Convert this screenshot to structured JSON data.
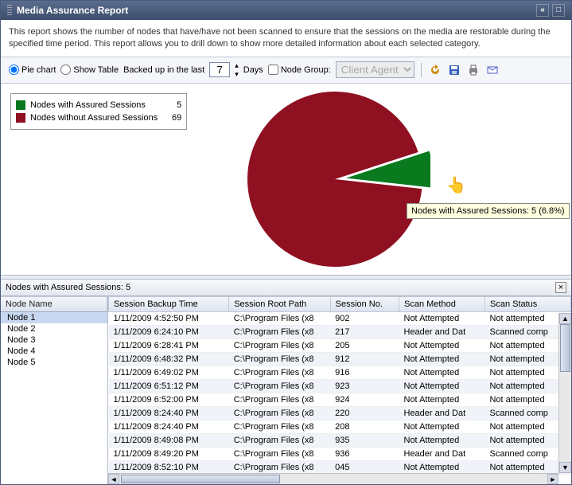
{
  "window": {
    "title": "Media Assurance Report"
  },
  "description": "This report shows the number of nodes that have/have not been scanned to ensure that the sessions on the media are restorable during the specified time period. This report allows you to drill down to show more detailed information about each selected category.",
  "toolbar": {
    "pie_chart_label": "Pie chart",
    "show_table_label": "Show Table",
    "backed_up_label": "Backed up in the last",
    "days_value": "7",
    "days_label": "Days",
    "node_group_label": "Node Group:",
    "node_group_value": "Client Agent"
  },
  "chart": {
    "type": "pie",
    "radius": 110,
    "series": [
      {
        "label": "Nodes with Assured Sessions",
        "value": 5,
        "color": "#0a7a1f"
      },
      {
        "label": "Nodes without Assured Sessions",
        "value": 69,
        "color": "#8f1020"
      }
    ],
    "tooltip": "Nodes with Assured Sessions: 5 (6.8%)",
    "background": "#ffffff",
    "explode_index": 0,
    "explode_offset": 14
  },
  "panel": {
    "title": "Nodes with Assured Sessions: 5"
  },
  "left": {
    "header": "Node Name",
    "items": [
      "Node 1",
      "Node 2",
      "Node 3",
      "Node 4",
      "Node 5"
    ],
    "selected": 0
  },
  "table": {
    "columns": [
      {
        "label": "Session Backup Time",
        "width": 140
      },
      {
        "label": "Session Root Path",
        "width": 118
      },
      {
        "label": "Session No.",
        "width": 80
      },
      {
        "label": "Scan Method",
        "width": 100
      },
      {
        "label": "Scan Status",
        "width": 100
      }
    ],
    "rows": [
      [
        "1/11/2009 4:52:50 PM",
        "C:\\Program Files (x8",
        "902",
        "Not Attempted",
        "Not attempted"
      ],
      [
        "1/11/2009 6:24:10 PM",
        "C:\\Program Files (x8",
        "217",
        "Header and Dat",
        "Scanned comp"
      ],
      [
        "1/11/2009 6:28:41 PM",
        "C:\\Program Files (x8",
        "205",
        "Not Attempted",
        "Not attempted"
      ],
      [
        "1/11/2009 6:48:32 PM",
        "C:\\Program Files (x8",
        "912",
        "Not Attempted",
        "Not attempted"
      ],
      [
        "1/11/2009 6:49:02 PM",
        "C:\\Program Files (x8",
        "916",
        "Not Attempted",
        "Not attempted"
      ],
      [
        "1/11/2009 6:51:12 PM",
        "C:\\Program Files (x8",
        "923",
        "Not Attempted",
        "Not attempted"
      ],
      [
        "1/11/2009 6:52:00 PM",
        "C:\\Program Files (x8",
        "924",
        "Not Attempted",
        "Not attempted"
      ],
      [
        "1/11/2009 8:24:40 PM",
        "C:\\Program Files (x8",
        "220",
        "Header and Dat",
        "Scanned comp"
      ],
      [
        "1/11/2009 8:24:40 PM",
        "C:\\Program Files (x8",
        "208",
        "Not Attempted",
        "Not attempted"
      ],
      [
        "1/11/2009 8:49:08 PM",
        "C:\\Program Files (x8",
        "935",
        "Not Attempted",
        "Not attempted"
      ],
      [
        "1/11/2009 8:49:20 PM",
        "C:\\Program Files (x8",
        "936",
        "Header and Dat",
        "Scanned comp"
      ],
      [
        "1/11/2009 8:52:10 PM",
        "C:\\Program Files (x8",
        "045",
        "Not Attempted",
        "Not attempted"
      ]
    ]
  }
}
